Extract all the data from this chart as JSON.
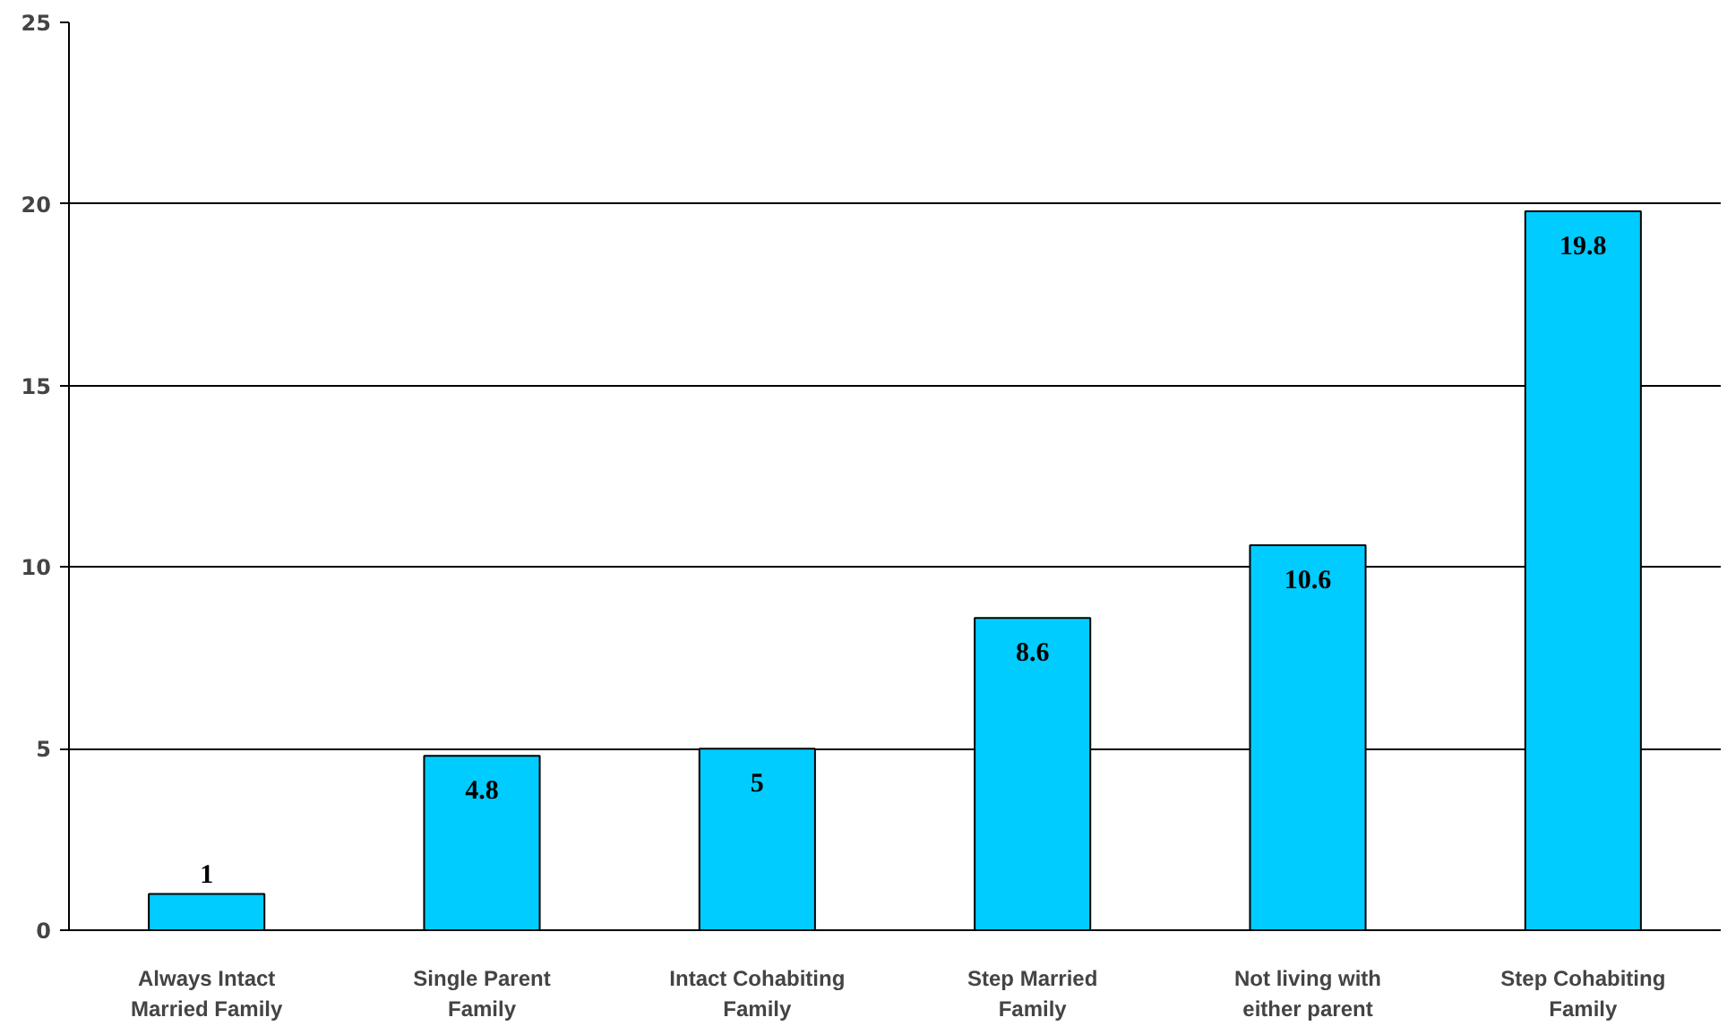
{
  "chart_data": {
    "type": "bar",
    "categories": [
      "Always Intact\nMarried Family",
      "Single Parent\nFamily",
      "Intact Cohabiting\nFamily",
      "Step Married\nFamily",
      "Not living with\neither parent",
      "Step Cohabiting\nFamily"
    ],
    "values": [
      1,
      4.8,
      5,
      8.6,
      10.6,
      19.8
    ],
    "color": "#00ccff",
    "ylim": [
      0,
      25
    ],
    "yticks": [
      0,
      5,
      10,
      15,
      20,
      25
    ],
    "grid": "y",
    "data_labels": true
  }
}
